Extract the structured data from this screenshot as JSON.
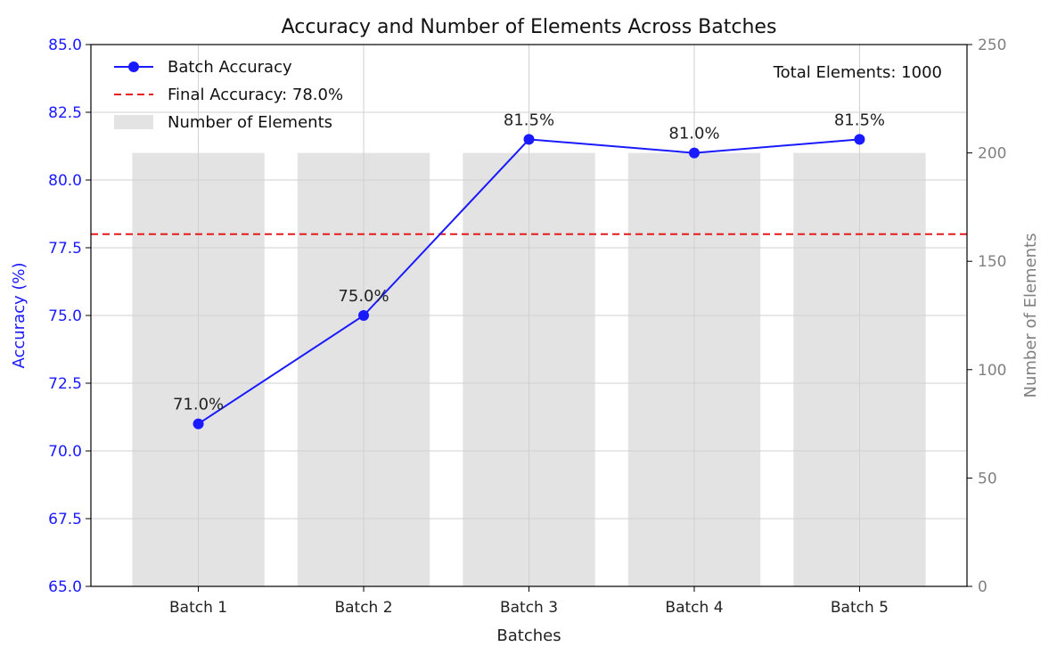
{
  "chart_data": {
    "type": "bar+line",
    "title": "Accuracy and Number of Elements Across Batches",
    "xlabel": "Batches",
    "ylabel_left": "Accuracy (%)",
    "ylabel_right": "Number of Elements",
    "categories": [
      "Batch 1",
      "Batch 2",
      "Batch 3",
      "Batch 4",
      "Batch 5"
    ],
    "ylim_left": [
      65.0,
      85.0
    ],
    "yticks_left": [
      "65.0",
      "67.5",
      "70.0",
      "72.5",
      "75.0",
      "77.5",
      "80.0",
      "82.5",
      "85.0"
    ],
    "ylim_right": [
      0,
      250
    ],
    "yticks_right": [
      "0",
      "50",
      "100",
      "150",
      "200",
      "250"
    ],
    "grid": true,
    "legend_position": "top-left",
    "series": [
      {
        "name": "Batch Accuracy",
        "kind": "line",
        "axis": "left",
        "color": "#1a1aff",
        "values": [
          71.0,
          75.0,
          81.5,
          81.0,
          81.5
        ],
        "data_labels": [
          "71.0%",
          "75.0%",
          "81.5%",
          "81.0%",
          "81.5%"
        ]
      },
      {
        "name": "Number of Elements",
        "kind": "bar",
        "axis": "right",
        "color": "#e3e3e3",
        "values": [
          200,
          200,
          200,
          200,
          200
        ]
      }
    ],
    "reference_line": {
      "name": "Final Accuracy: 78.0%",
      "value": 78.0,
      "axis": "left",
      "color": "#e41a1c",
      "style": "dashed"
    },
    "annotation": "Total Elements: 1000",
    "colors": {
      "left_axis": "#1a1aff",
      "right_axis": "#808080",
      "grid": "#d0d0d0"
    }
  }
}
